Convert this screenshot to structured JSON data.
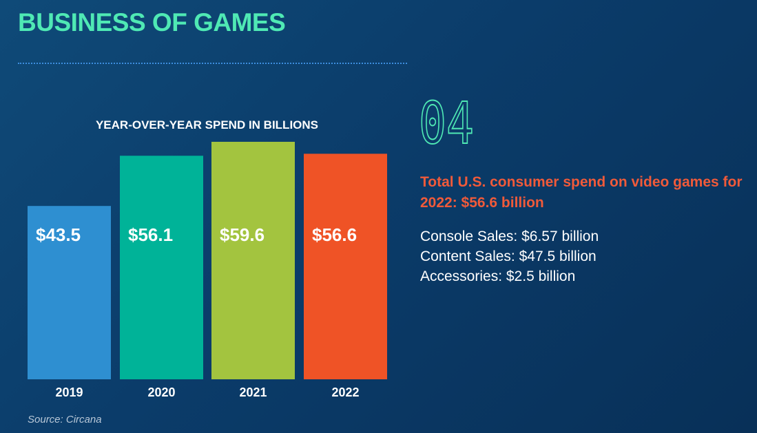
{
  "header": {
    "title": "BUSINESS OF GAMES"
  },
  "stat": {
    "number": "04"
  },
  "summary": {
    "headline": "Total U.S. consumer spend on video games for 2022: $56.6 billion",
    "items": [
      "Console Sales: $6.57 billion",
      "Content Sales: $47.5 billion",
      "Accessories: $2.5 billion"
    ]
  },
  "source": "Source: Circana",
  "colors": {
    "title": "#4fe9b4",
    "headline": "#f05a3a",
    "bars": [
      "#2e8fd1",
      "#00b398",
      "#a3c43f",
      "#ef5326"
    ]
  },
  "chart_data": {
    "type": "bar",
    "title": "YEAR-OVER-YEAR SPEND IN BILLIONS",
    "categories": [
      "2019",
      "2020",
      "2021",
      "2022"
    ],
    "values": [
      43.5,
      56.1,
      59.6,
      56.6
    ],
    "value_labels": [
      "$43.5",
      "$56.1",
      "$59.6",
      "$56.6"
    ],
    "xlabel": "",
    "ylabel": "",
    "ylim": [
      0,
      60
    ],
    "grid": false,
    "legend": false
  }
}
